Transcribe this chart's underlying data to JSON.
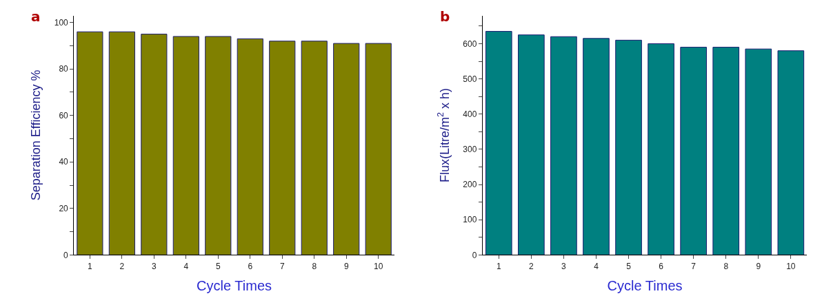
{
  "chart_data": [
    {
      "type": "bar",
      "title": "a",
      "xlabel": "Cycle Times",
      "ylabel": "Separation Efficiency %",
      "categories": [
        "1",
        "2",
        "3",
        "4",
        "5",
        "6",
        "7",
        "8",
        "9",
        "10"
      ],
      "values": [
        96,
        96,
        95,
        94,
        94,
        93,
        92,
        92,
        91,
        91
      ],
      "color": "#808000",
      "ylim": [
        0,
        103
      ],
      "yticks": [
        0,
        {
          "value": 10,
          "label": null
        },
        20,
        {
          "value": 30,
          "label": null
        },
        40,
        {
          "value": 50,
          "label": null
        },
        60,
        {
          "value": 70,
          "label": null
        },
        80,
        {
          "value": 90,
          "label": null
        },
        100
      ]
    },
    {
      "type": "bar",
      "title": "b",
      "xlabel": "Cycle Times",
      "ylabel": "Flux(Litre/m$^{2}$ x h)",
      "categories": [
        "1",
        "2",
        "3",
        "4",
        "5",
        "6",
        "7",
        "8",
        "9",
        "10"
      ],
      "values": [
        635,
        625,
        620,
        615,
        610,
        600,
        590,
        590,
        585,
        580
      ],
      "color": "#008080",
      "ylim": [
        0,
        680
      ],
      "yticks": [
        0,
        {
          "value": 50,
          "label": null
        },
        100,
        {
          "value": 150,
          "label": null
        },
        200,
        {
          "value": 250,
          "label": null
        },
        300,
        {
          "value": 350,
          "label": null
        },
        400,
        {
          "value": 450,
          "label": null
        },
        500,
        {
          "value": 550,
          "label": null
        },
        600,
        {
          "value": 650,
          "label": null
        }
      ]
    }
  ]
}
